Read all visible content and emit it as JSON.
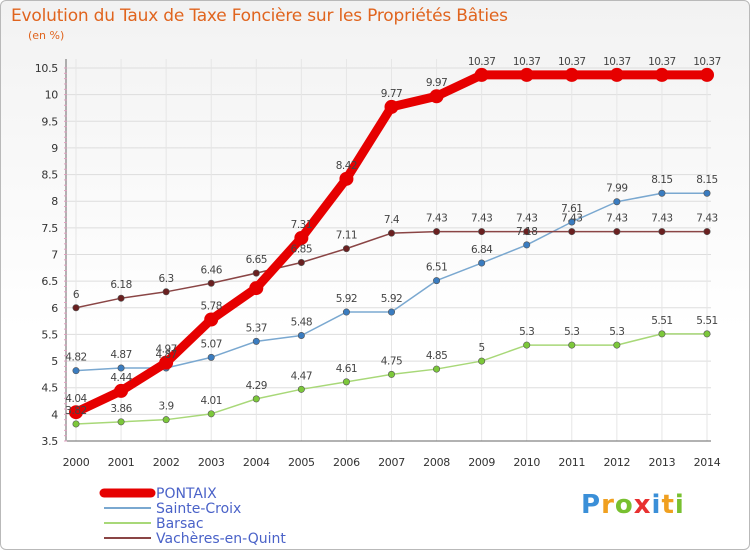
{
  "chart_data": {
    "type": "line",
    "title": "Evolution du Taux de Taxe Foncière sur les Propriétés Bâties",
    "unit_label": "(en %)",
    "x": [
      "2000",
      "2001",
      "2002",
      "2003",
      "2004",
      "2005",
      "2006",
      "2007",
      "2008",
      "2009",
      "2010",
      "2011",
      "2012",
      "2013",
      "2014"
    ],
    "ylim": [
      3.5,
      10.5
    ],
    "yticks": [
      "3.5",
      "4",
      "4.5",
      "5",
      "5.5",
      "6",
      "6.5",
      "7",
      "7.5",
      "8",
      "8.5",
      "9",
      "9.5",
      "10",
      "10.5"
    ],
    "series": [
      {
        "name": "PONTAIX",
        "color": "#e60000",
        "marker": "#e60000",
        "values": [
          4.04,
          4.44,
          4.97,
          5.78,
          6.37,
          7.31,
          8.42,
          9.77,
          9.97,
          10.37,
          10.37,
          10.37,
          10.37,
          10.37,
          10.37
        ],
        "labels": [
          "4.04",
          "4.44",
          "4.97",
          "5.78",
          "",
          "7.31",
          "8.42",
          "9.77",
          "9.97",
          "10.37",
          "10.37",
          "10.37",
          "10.37",
          "10.37",
          "10.37"
        ]
      },
      {
        "name": "Sainte-Croix",
        "color": "#7aa8d0",
        "marker": "#3a7cc0",
        "values": [
          4.82,
          4.87,
          4.87,
          5.07,
          5.37,
          5.48,
          5.92,
          5.92,
          6.51,
          6.84,
          7.18,
          7.61,
          7.99,
          8.15,
          8.15
        ],
        "labels": [
          "4.82",
          "4.87",
          "4.87",
          "5.07",
          "5.37",
          "5.48",
          "5.92",
          "5.92",
          "6.51",
          "6.84",
          "7.18",
          "7.61",
          "7.99",
          "8.15",
          "8.15"
        ]
      },
      {
        "name": "Barsac",
        "color": "#a8d878",
        "marker": "#7cc83a",
        "values": [
          3.82,
          3.86,
          3.9,
          4.01,
          4.29,
          4.47,
          4.61,
          4.75,
          4.85,
          5,
          5.3,
          5.3,
          5.3,
          5.51,
          5.51
        ],
        "labels": [
          "3.82",
          "3.86",
          "3.9",
          "4.01",
          "4.29",
          "4.47",
          "4.61",
          "4.75",
          "4.85",
          "5",
          "5.3",
          "5.3",
          "5.3",
          "5.51",
          "5.51"
        ]
      },
      {
        "name": "Vachères-en-Quint",
        "color": "#8a4545",
        "marker": "#6a2020",
        "values": [
          6,
          6.18,
          6.3,
          6.46,
          6.65,
          6.85,
          7.11,
          7.4,
          7.43,
          7.43,
          7.43,
          7.43,
          7.43,
          7.43,
          7.43
        ],
        "labels": [
          "6",
          "6.18",
          "6.3",
          "6.46",
          "6.65",
          "6.85",
          "7.11",
          "7.4",
          "7.43",
          "7.43",
          "7.43",
          "7.43",
          "7.43",
          "7.43",
          "7.43"
        ]
      }
    ],
    "legend_position": "bottom-left"
  },
  "logo": {
    "letters": [
      "P",
      "r",
      "o",
      "x",
      "i",
      "t",
      "i"
    ],
    "colors": [
      "#3a8fd8",
      "#f0a020",
      "#78c030",
      "#e83030",
      "#3a8fd8",
      "#f0a020",
      "#78c030"
    ]
  }
}
